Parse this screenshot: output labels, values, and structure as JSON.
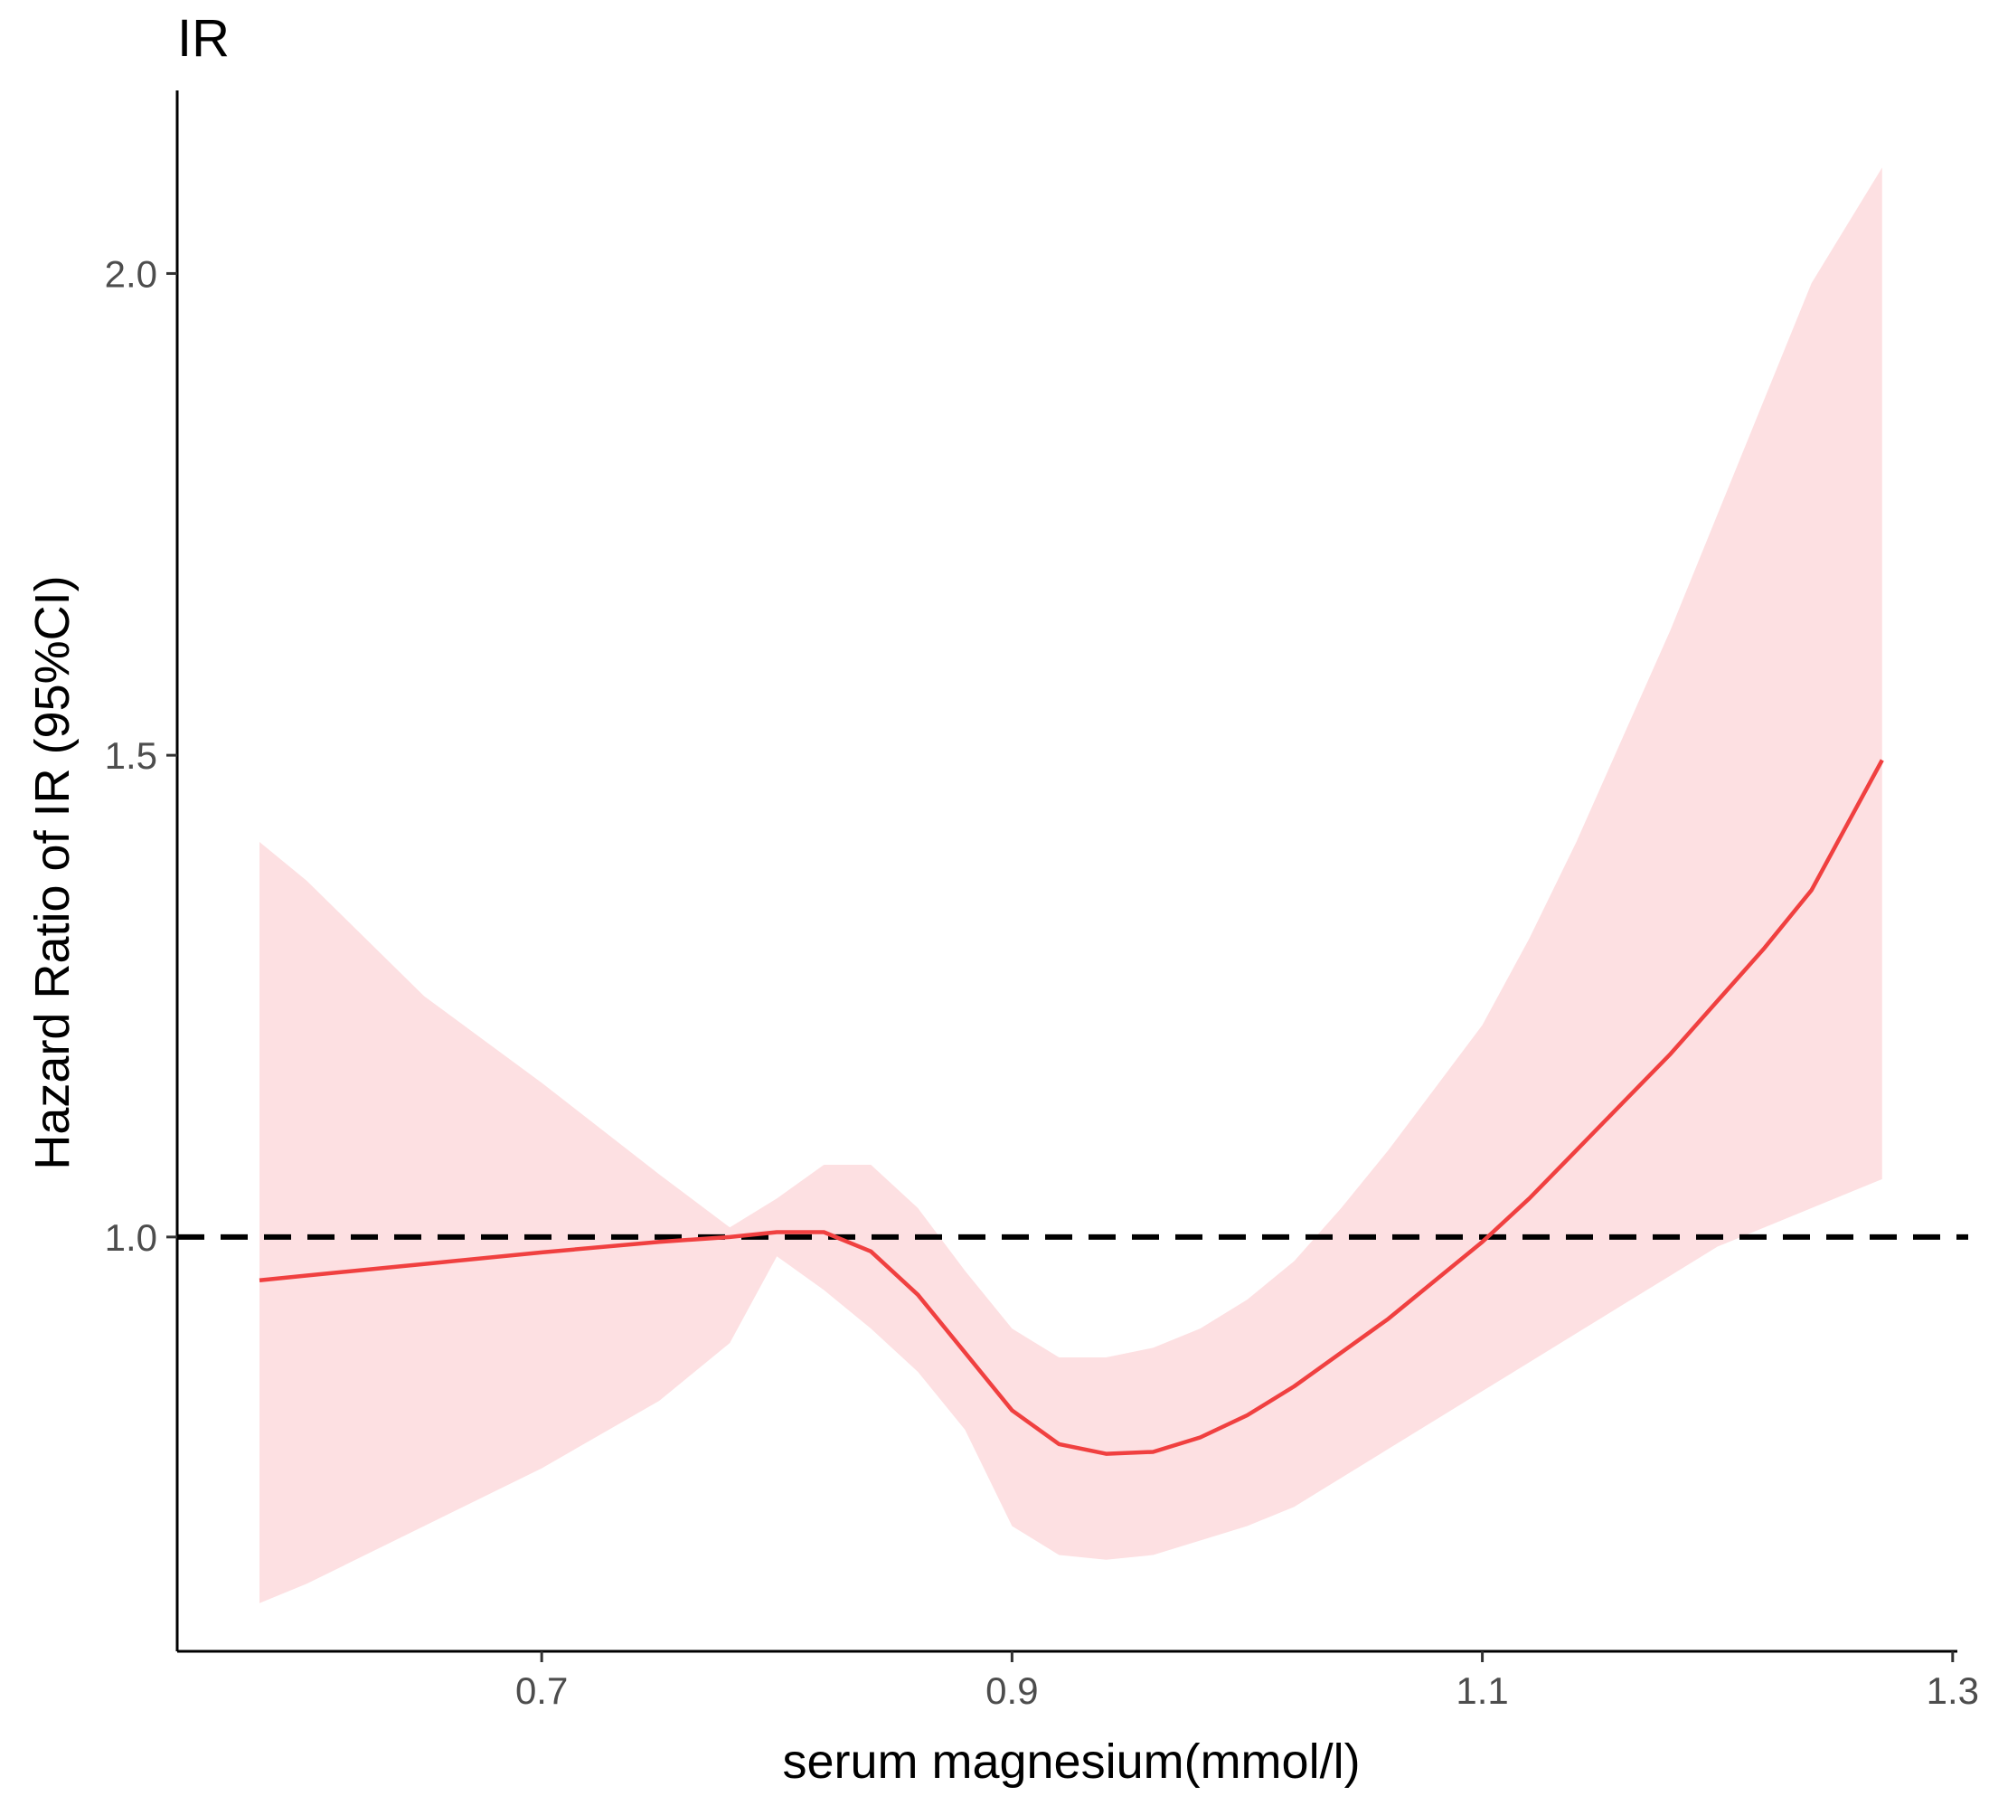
{
  "chart_data": {
    "type": "line",
    "title": "IR",
    "xlabel": "serum magnesium(mmol/l)",
    "ylabel": "Hazard Ratio of IR (95%CI)",
    "xlim": [
      0.545,
      1.302
    ],
    "ylim": [
      0.57,
      2.19
    ],
    "x_ticks": [
      "0.7",
      "0.9",
      "1.1",
      "1.3"
    ],
    "y_ticks": [
      "1.0",
      "1.5",
      "2.0"
    ],
    "reference_line": {
      "y": 1.0,
      "style": "dashed",
      "color": "#000000"
    },
    "grid": false,
    "legend": "none",
    "series": [
      {
        "x": [
          0.58,
          0.6,
          0.65,
          0.7,
          0.75,
          0.78,
          0.8,
          0.82,
          0.84,
          0.86,
          0.88,
          0.9,
          0.92,
          0.94,
          0.96,
          0.98,
          1.0,
          1.02,
          1.04,
          1.06,
          1.08,
          1.1,
          1.12,
          1.14,
          1.16,
          1.18,
          1.2,
          1.22,
          1.24,
          1.27
        ],
        "y": [
          0.955,
          0.96,
          0.972,
          0.984,
          0.995,
          1.0,
          1.005,
          1.005,
          0.985,
          0.94,
          0.88,
          0.82,
          0.785,
          0.775,
          0.777,
          0.792,
          0.815,
          0.845,
          0.88,
          0.915,
          0.955,
          0.995,
          1.04,
          1.09,
          1.14,
          1.19,
          1.245,
          1.3,
          1.36,
          1.495
        ],
        "lower": [
          0.62,
          0.64,
          0.7,
          0.76,
          0.83,
          0.89,
          0.98,
          0.945,
          0.905,
          0.86,
          0.8,
          0.7,
          0.67,
          0.665,
          0.67,
          0.685,
          0.7,
          0.72,
          0.75,
          0.78,
          0.81,
          0.84,
          0.87,
          0.9,
          0.93,
          0.96,
          0.99,
          1.01,
          1.03,
          1.06
        ],
        "upper": [
          1.41,
          1.37,
          1.25,
          1.16,
          1.065,
          1.01,
          1.04,
          1.075,
          1.075,
          1.03,
          0.965,
          0.905,
          0.875,
          0.875,
          0.885,
          0.905,
          0.935,
          0.975,
          1.03,
          1.09,
          1.155,
          1.22,
          1.31,
          1.41,
          1.52,
          1.63,
          1.75,
          1.87,
          1.99,
          2.11
        ],
        "line_color": "#F04040",
        "band_color": "#FDE0E2"
      }
    ]
  }
}
